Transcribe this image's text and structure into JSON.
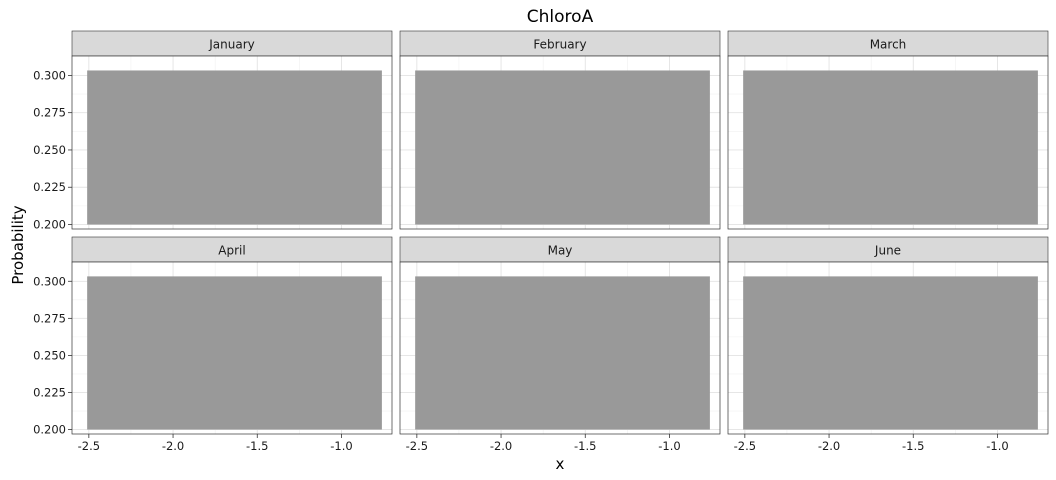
{
  "chart_data": {
    "type": "area",
    "title": "ChloroA",
    "xlabel": "x",
    "ylabel": "Probability",
    "facets": [
      "January",
      "February",
      "March",
      "April",
      "May",
      "June"
    ],
    "xlim": [
      -2.6,
      -0.7
    ],
    "ylim": [
      0.197,
      0.313
    ],
    "x_ticks": [
      -2.5,
      -2.0,
      -1.5,
      -1.0
    ],
    "x_tick_labels": [
      "-2.5",
      "-2.0",
      "-1.5",
      "-1.0"
    ],
    "y_ticks": [
      0.2,
      0.225,
      0.25,
      0.275,
      0.3
    ],
    "y_tick_labels": [
      "0.200",
      "0.225",
      "0.250",
      "0.275",
      "0.300"
    ],
    "band": {
      "x": [
        -2.51,
        -0.76
      ],
      "ymin": 0.2,
      "ymax": 0.3033
    },
    "band_color": "#999999",
    "strip_color": "#d9d9d9",
    "grid": true
  }
}
